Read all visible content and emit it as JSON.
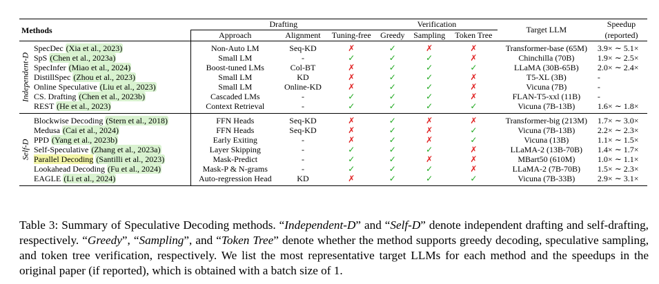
{
  "headers": {
    "methods": "Methods",
    "drafting": "Drafting",
    "verification": "Verification",
    "target_llm": "Target LLM",
    "speedup": "Speedup",
    "speedup_sub": "(reported)",
    "approach": "Approach",
    "alignment": "Alignment",
    "tuning_free": "Tuning-free",
    "greedy": "Greedy",
    "sampling": "Sampling",
    "token_tree": "Token Tree"
  },
  "symbols": {
    "check": "✓",
    "cross": "✗"
  },
  "groups": [
    {
      "label": "Independent-D",
      "rows": [
        {
          "name": "SpecDec",
          "cite": "(Xia et al., 2023)",
          "approach": "Non-Auto LM",
          "alignment": "Seq-KD",
          "tuning": false,
          "greedy": true,
          "sampling": false,
          "tree": false,
          "target": "Transformer-base (65M)",
          "speedup": "3.9× ∼ 5.1×"
        },
        {
          "name": "SpS",
          "cite": "(Chen et al., 2023a)",
          "approach": "Small LM",
          "alignment": "-",
          "tuning": true,
          "greedy": true,
          "sampling": true,
          "tree": false,
          "target": "Chinchilla (70B)",
          "speedup": "1.9× ∼ 2.5×"
        },
        {
          "name": "SpecInfer",
          "cite": "(Miao et al., 2024)",
          "approach": "Boost-tuned LMs",
          "alignment": "Col-BT",
          "tuning": false,
          "greedy": true,
          "sampling": true,
          "tree": true,
          "target": "LLaMA (30B-65B)",
          "speedup": "2.0× ∼ 2.4×"
        },
        {
          "name": "DistillSpec",
          "cite": "(Zhou et al., 2023)",
          "approach": "Small LM",
          "alignment": "KD",
          "tuning": false,
          "greedy": true,
          "sampling": true,
          "tree": false,
          "target": "T5-XL (3B)",
          "speedup": "-"
        },
        {
          "name": "Online Speculative",
          "cite": "(Liu et al., 2023)",
          "approach": "Small LM",
          "alignment": "Online-KD",
          "tuning": false,
          "greedy": true,
          "sampling": true,
          "tree": false,
          "target": "Vicuna (7B)",
          "speedup": "-"
        },
        {
          "name": "CS. Drafting",
          "cite": "(Chen et al., 2023b)",
          "approach": "Cascaded LMs",
          "alignment": "-",
          "tuning": true,
          "greedy": true,
          "sampling": true,
          "tree": false,
          "target": "FLAN-T5-xxl (11B)",
          "speedup": "-"
        },
        {
          "name": "REST",
          "cite": "(He et al., 2023)",
          "approach": "Context Retrieval",
          "alignment": "-",
          "tuning": true,
          "greedy": true,
          "sampling": true,
          "tree": true,
          "target": "Vicuna (7B-13B)",
          "speedup": "1.6× ∼ 1.8×"
        }
      ]
    },
    {
      "label": "Self-D",
      "rows": [
        {
          "name": "Blockwise Decoding",
          "cite": "(Stern et al., 2018)",
          "approach": "FFN Heads",
          "alignment": "Seq-KD",
          "tuning": false,
          "greedy": true,
          "sampling": false,
          "tree": false,
          "target": "Transformer-big (213M)",
          "speedup": "1.7× ∼ 3.0×"
        },
        {
          "name": "Medusa",
          "cite": "(Cai et al., 2024)",
          "approach": "FFN Heads",
          "alignment": "Seq-KD",
          "tuning": false,
          "greedy": true,
          "sampling": false,
          "tree": true,
          "target": "Vicuna (7B-13B)",
          "speedup": "2.2× ∼ 2.3×"
        },
        {
          "name": "PPD",
          "cite": "(Yang et al., 2023b)",
          "approach": "Early Exiting",
          "alignment": "-",
          "tuning": false,
          "greedy": true,
          "sampling": false,
          "tree": true,
          "target": "Vicuna (13B)",
          "speedup": "1.1× ∼ 1.5×"
        },
        {
          "name": "Self-Speculative",
          "cite": "(Zhang et al., 2023a)",
          "approach": "Layer Skipping",
          "alignment": "-",
          "tuning": true,
          "greedy": true,
          "sampling": true,
          "tree": false,
          "target": "LLaMA-2 (13B-70B)",
          "speedup": "1.4× ∼ 1.7×"
        },
        {
          "name": "Parallel Decoding",
          "cite": "(Santilli et al., 2023)",
          "approach": "Mask-Predict",
          "alignment": "-",
          "tuning": true,
          "greedy": true,
          "sampling": false,
          "tree": false,
          "target": "MBart50 (610M)",
          "speedup": "1.0× ∼ 1.1×",
          "name_hl": true
        },
        {
          "name": "Lookahead Decoding",
          "cite": "(Fu et al., 2024)",
          "approach": "Mask-P & N-grams",
          "alignment": "-",
          "tuning": true,
          "greedy": true,
          "sampling": true,
          "tree": false,
          "target": "LLaMA-2 (7B-70B)",
          "speedup": "1.5× ∼ 2.3×"
        },
        {
          "name": "EAGLE",
          "cite": "(Li et al., 2024)",
          "approach": "Auto-regression Head",
          "alignment": "KD",
          "tuning": false,
          "greedy": true,
          "sampling": true,
          "tree": true,
          "target": "Vicuna (7B-33B)",
          "speedup": "2.9× ∼ 3.1×"
        }
      ]
    }
  ],
  "caption": {
    "p1": "Table 3: Summary of Speculative Decoding methods. “",
    "i1": "Independent-D",
    "p2": "” and “",
    "i2": "Self-D",
    "p3": "” denote independent drafting and self-drafting, respectively. “",
    "i3": "Greedy",
    "p4": "”, “",
    "i4": "Sampling",
    "p5": "”, and “",
    "i5": "Token Tree",
    "p6": "” denote whether the method supports greedy decoding, speculative sampling, and token tree verification, respectively. We list the most representative target LLMs for each method and the speedups in the original paper (if reported), which is obtained with a batch size of 1."
  },
  "colors": {
    "check": "#1fa81f",
    "cross": "#e02020",
    "cite_bg": "#d9f2d0",
    "highlight": "#f4f6a8"
  }
}
